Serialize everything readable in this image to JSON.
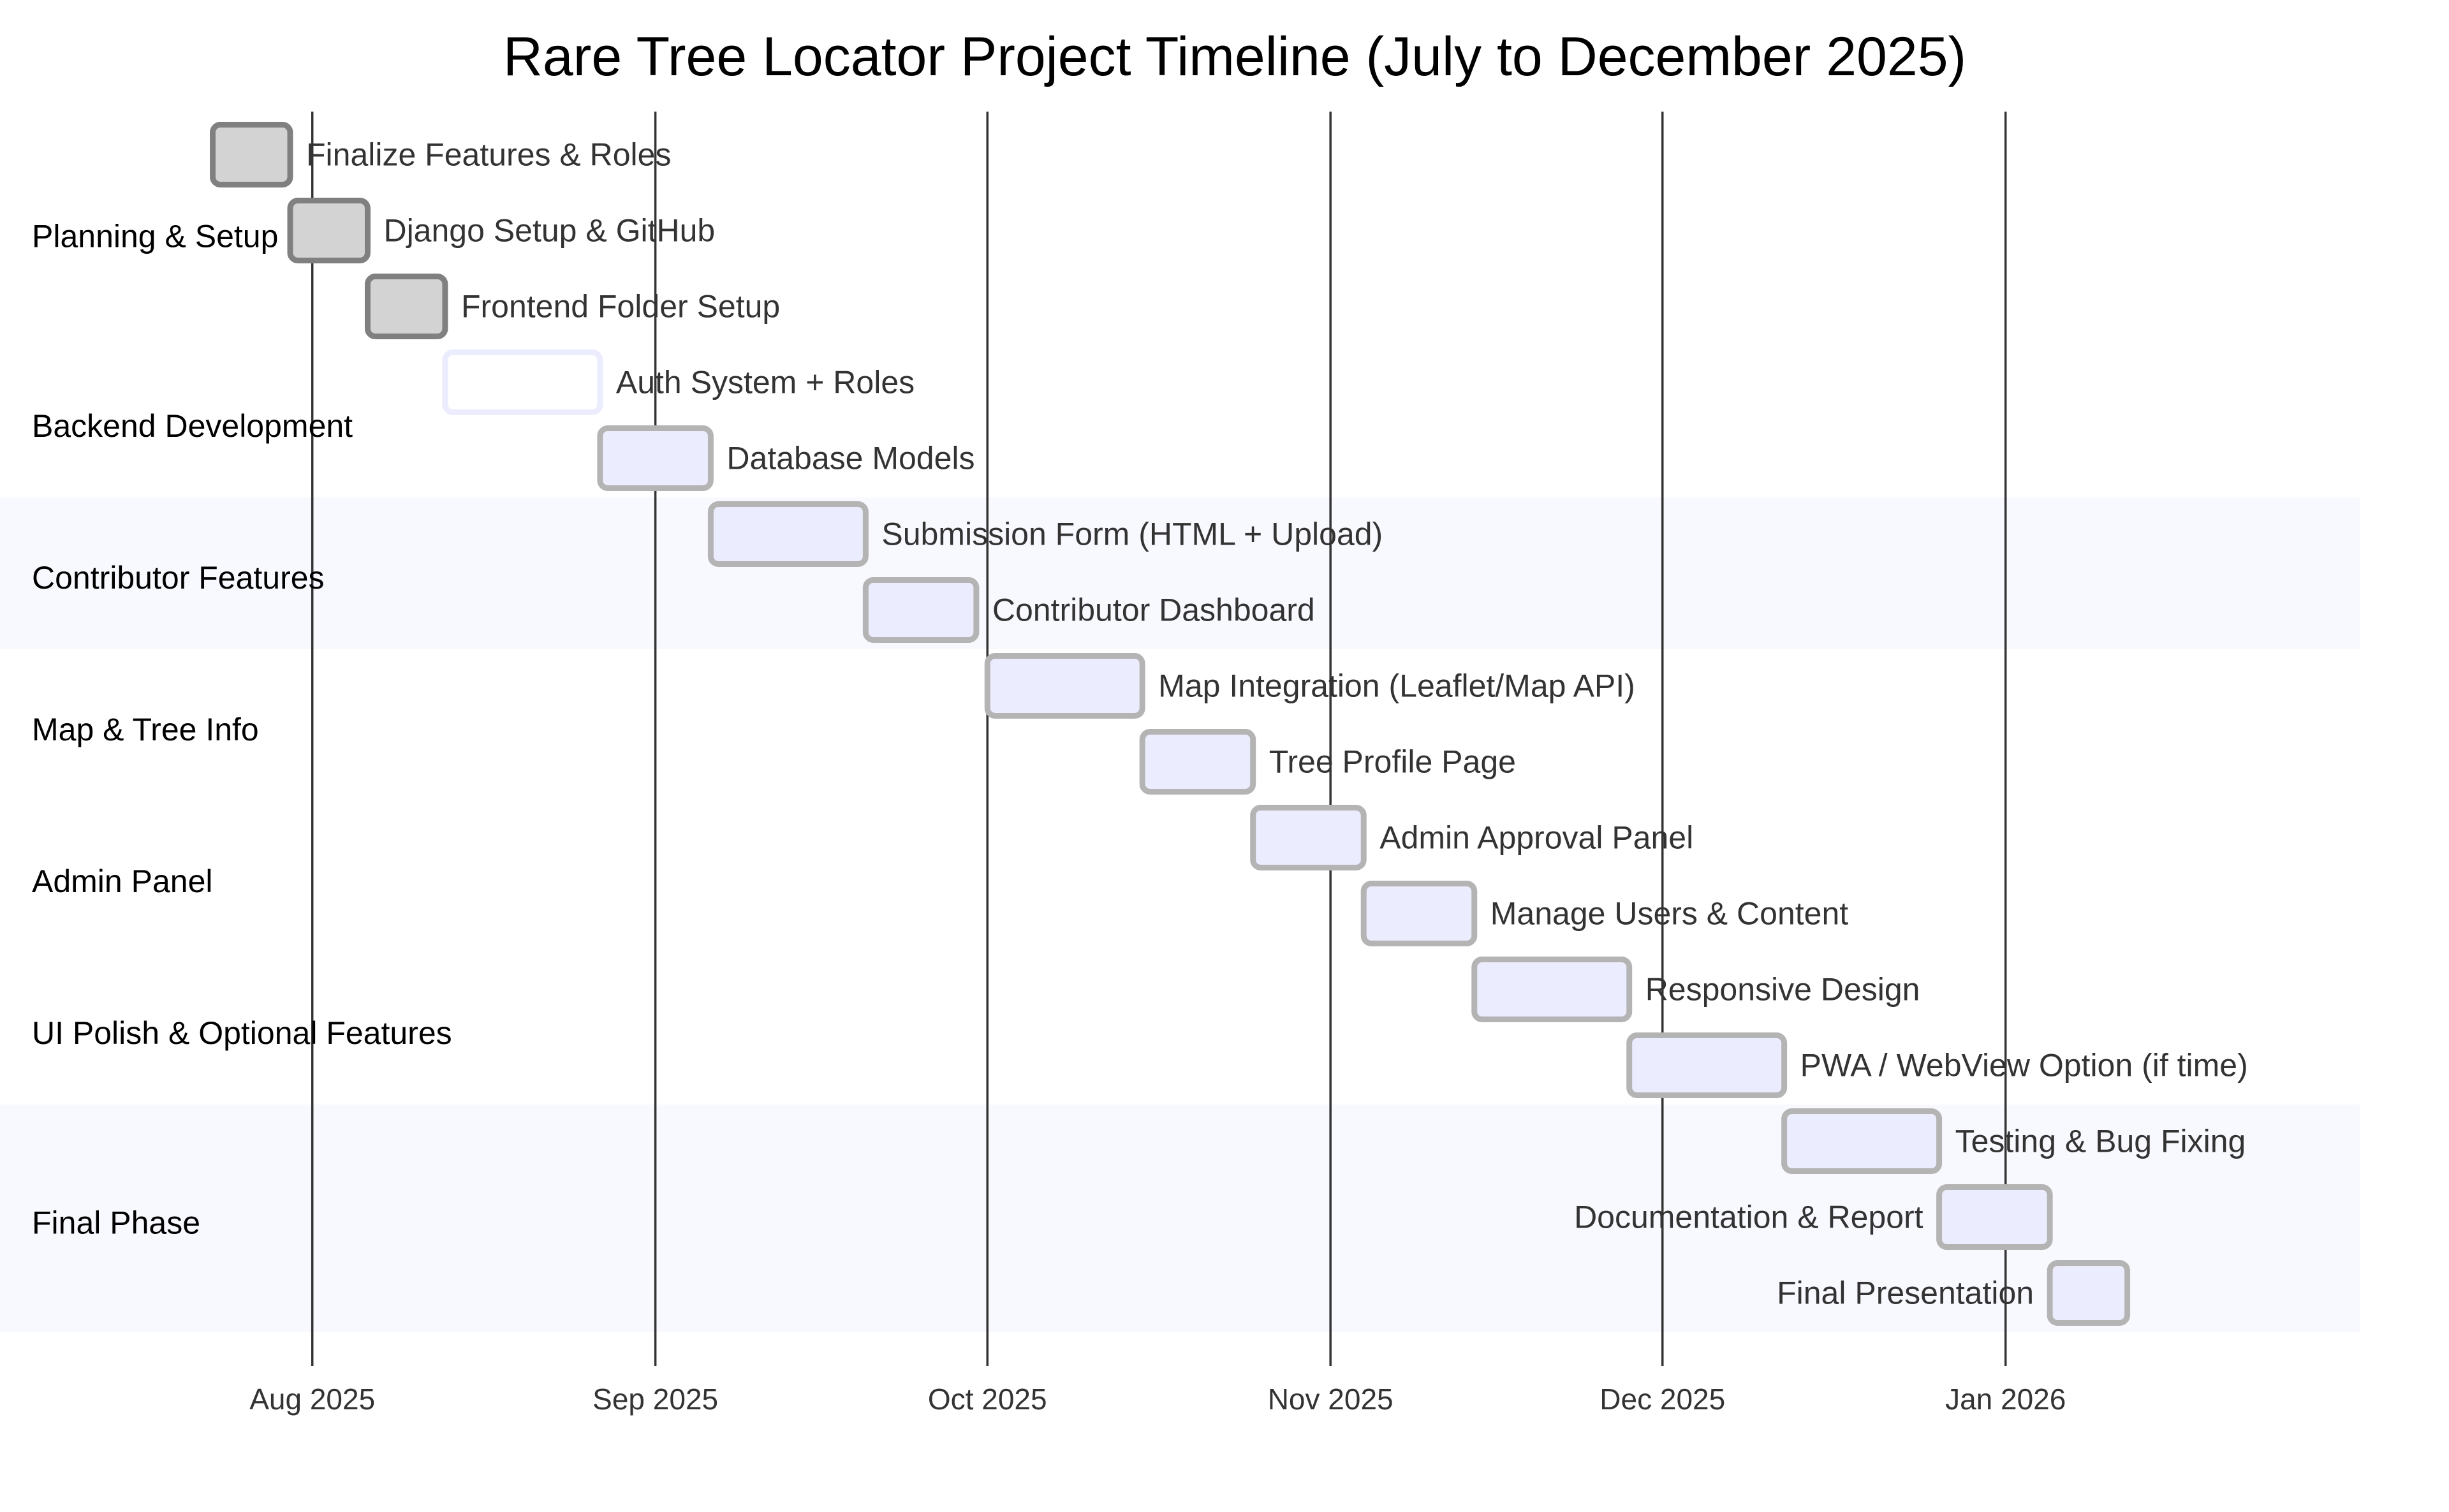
{
  "chart_data": {
    "type": "gantt",
    "title": "Rare Tree Locator Project Timeline (July to December 2025)",
    "x_range": [
      "2025-07-13",
      "2026-02-02"
    ],
    "ticks": [
      {
        "date": "2025-08-01",
        "label": "Aug 2025"
      },
      {
        "date": "2025-09-01",
        "label": "Sep 2025"
      },
      {
        "date": "2025-10-01",
        "label": "Oct 2025"
      },
      {
        "date": "2025-11-01",
        "label": "Nov 2025"
      },
      {
        "date": "2025-12-01",
        "label": "Dec 2025"
      },
      {
        "date": "2026-01-01",
        "label": "Jan 2026"
      }
    ],
    "sections": [
      {
        "name": "Planning & Setup",
        "shaded": false,
        "tasks": [
          {
            "name": "Finalize Features & Roles",
            "start": "2025-07-23",
            "end": "2025-07-30",
            "status": "done"
          },
          {
            "name": "Django Setup & GitHub",
            "start": "2025-07-30",
            "end": "2025-08-06",
            "status": "done"
          },
          {
            "name": "Frontend Folder Setup",
            "start": "2025-08-06",
            "end": "2025-08-13",
            "status": "done"
          }
        ]
      },
      {
        "name": "Backend Development",
        "shaded": false,
        "tasks": [
          {
            "name": "Auth System + Roles",
            "start": "2025-08-13",
            "end": "2025-08-27",
            "status": "active"
          },
          {
            "name": "Database Models",
            "start": "2025-08-27",
            "end": "2025-09-06",
            "status": "planned"
          }
        ]
      },
      {
        "name": "Contributor Features",
        "shaded": true,
        "tasks": [
          {
            "name": "Submission Form (HTML + Upload)",
            "start": "2025-09-06",
            "end": "2025-09-20",
            "status": "planned"
          },
          {
            "name": "Contributor Dashboard",
            "start": "2025-09-20",
            "end": "2025-09-30",
            "status": "planned"
          }
        ]
      },
      {
        "name": "Map & Tree Info",
        "shaded": false,
        "tasks": [
          {
            "name": "Map Integration (Leaflet/Map API)",
            "start": "2025-10-01",
            "end": "2025-10-15",
            "status": "planned"
          },
          {
            "name": "Tree Profile Page",
            "start": "2025-10-15",
            "end": "2025-10-25",
            "status": "planned"
          }
        ]
      },
      {
        "name": "Admin Panel",
        "shaded": false,
        "tasks": [
          {
            "name": "Admin Approval Panel",
            "start": "2025-10-25",
            "end": "2025-11-04",
            "status": "planned"
          },
          {
            "name": "Manage Users & Content",
            "start": "2025-11-04",
            "end": "2025-11-14",
            "status": "planned"
          }
        ]
      },
      {
        "name": "UI Polish & Optional Features",
        "shaded": false,
        "tasks": [
          {
            "name": "Responsive Design",
            "start": "2025-11-14",
            "end": "2025-11-28",
            "status": "planned"
          },
          {
            "name": "PWA / WebView Option (if time)",
            "start": "2025-11-28",
            "end": "2025-12-12",
            "status": "planned"
          }
        ]
      },
      {
        "name": "Final Phase",
        "shaded": true,
        "tasks": [
          {
            "name": "Testing & Bug Fixing",
            "start": "2025-12-12",
            "end": "2025-12-26",
            "status": "planned"
          },
          {
            "name": "Documentation & Report",
            "start": "2025-12-26",
            "end": "2026-01-05",
            "status": "planned"
          },
          {
            "name": "Final Presentation",
            "start": "2026-01-05",
            "end": "2026-01-12",
            "status": "planned"
          }
        ]
      }
    ],
    "colors": {
      "done_fill": "#d3d3d3",
      "done_stroke": "#808080",
      "active_fill": "#ffffff",
      "active_stroke": "#ececff",
      "planned_fill": "#ececff",
      "planned_stroke": "#b4b4b4",
      "band": "#f8f8ff",
      "grid": "#333333"
    }
  }
}
